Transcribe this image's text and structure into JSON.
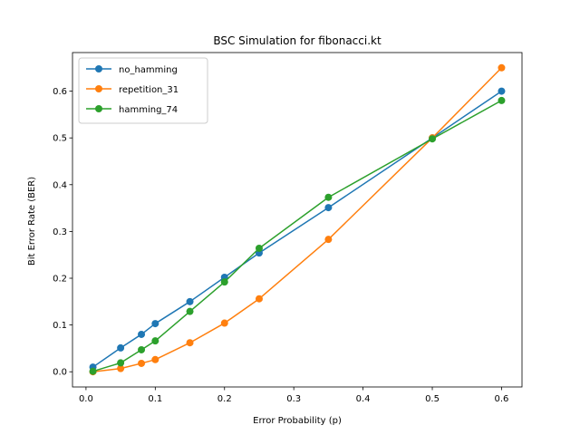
{
  "chart_data": {
    "type": "line",
    "title": "BSC Simulation for fibonacci.kt",
    "xlabel": "Error Probability (p)",
    "ylabel": "Bit Error Rate (BER)",
    "xlim": [
      -0.0195,
      0.6295
    ],
    "ylim": [
      -0.0325,
      0.6825
    ],
    "xticks": [
      0.0,
      0.1,
      0.2,
      0.3,
      0.4,
      0.5,
      0.6
    ],
    "xtick_labels": [
      "0.0",
      "0.1",
      "0.2",
      "0.3",
      "0.4",
      "0.5",
      "0.6"
    ],
    "yticks": [
      0.0,
      0.1,
      0.2,
      0.3,
      0.4,
      0.5,
      0.6
    ],
    "ytick_labels": [
      "0.0",
      "0.1",
      "0.2",
      "0.3",
      "0.4",
      "0.5",
      "0.6"
    ],
    "grid": false,
    "legend_position": "top-left",
    "series": [
      {
        "name": "no_hamming",
        "color": "#1f77b4",
        "x": [
          0.01,
          0.05,
          0.08,
          0.1,
          0.15,
          0.2,
          0.25,
          0.35,
          0.5,
          0.6
        ],
        "y": [
          0.01,
          0.051,
          0.08,
          0.103,
          0.15,
          0.202,
          0.254,
          0.351,
          0.5,
          0.6
        ]
      },
      {
        "name": "repetition_31",
        "color": "#ff7f0e",
        "x": [
          0.01,
          0.05,
          0.08,
          0.1,
          0.15,
          0.2,
          0.25,
          0.35,
          0.5,
          0.6
        ],
        "y": [
          0.0,
          0.007,
          0.018,
          0.026,
          0.062,
          0.104,
          0.156,
          0.283,
          0.5,
          0.65
        ]
      },
      {
        "name": "hamming_74",
        "color": "#2ca02c",
        "x": [
          0.01,
          0.05,
          0.08,
          0.1,
          0.15,
          0.2,
          0.25,
          0.35,
          0.5,
          0.6
        ],
        "y": [
          0.001,
          0.019,
          0.047,
          0.066,
          0.129,
          0.192,
          0.264,
          0.373,
          0.498,
          0.58
        ]
      }
    ]
  }
}
